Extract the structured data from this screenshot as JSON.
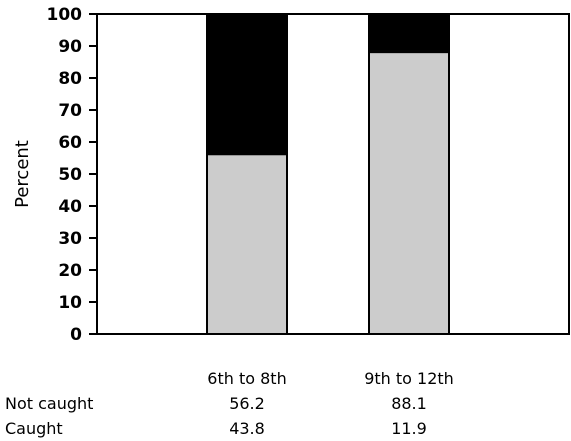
{
  "chart_data": {
    "type": "bar",
    "stacked": true,
    "ylabel": "Percent",
    "ylim": [
      0,
      100
    ],
    "yticks": [
      0,
      10,
      20,
      30,
      40,
      50,
      60,
      70,
      80,
      90,
      100
    ],
    "categories": [
      "6th to 8th",
      "9th to 12th"
    ],
    "series": [
      {
        "name": "Not caught",
        "values": [
          56.2,
          88.1
        ],
        "color": "#cccccc"
      },
      {
        "name": "Caught",
        "values": [
          43.8,
          11.9
        ],
        "color": "#000000"
      }
    ],
    "table": {
      "rows": [
        {
          "label": "Not caught",
          "values": [
            "56.2",
            "88.1"
          ]
        },
        {
          "label": "Caught",
          "values": [
            "43.8",
            "11.9"
          ]
        }
      ]
    }
  }
}
